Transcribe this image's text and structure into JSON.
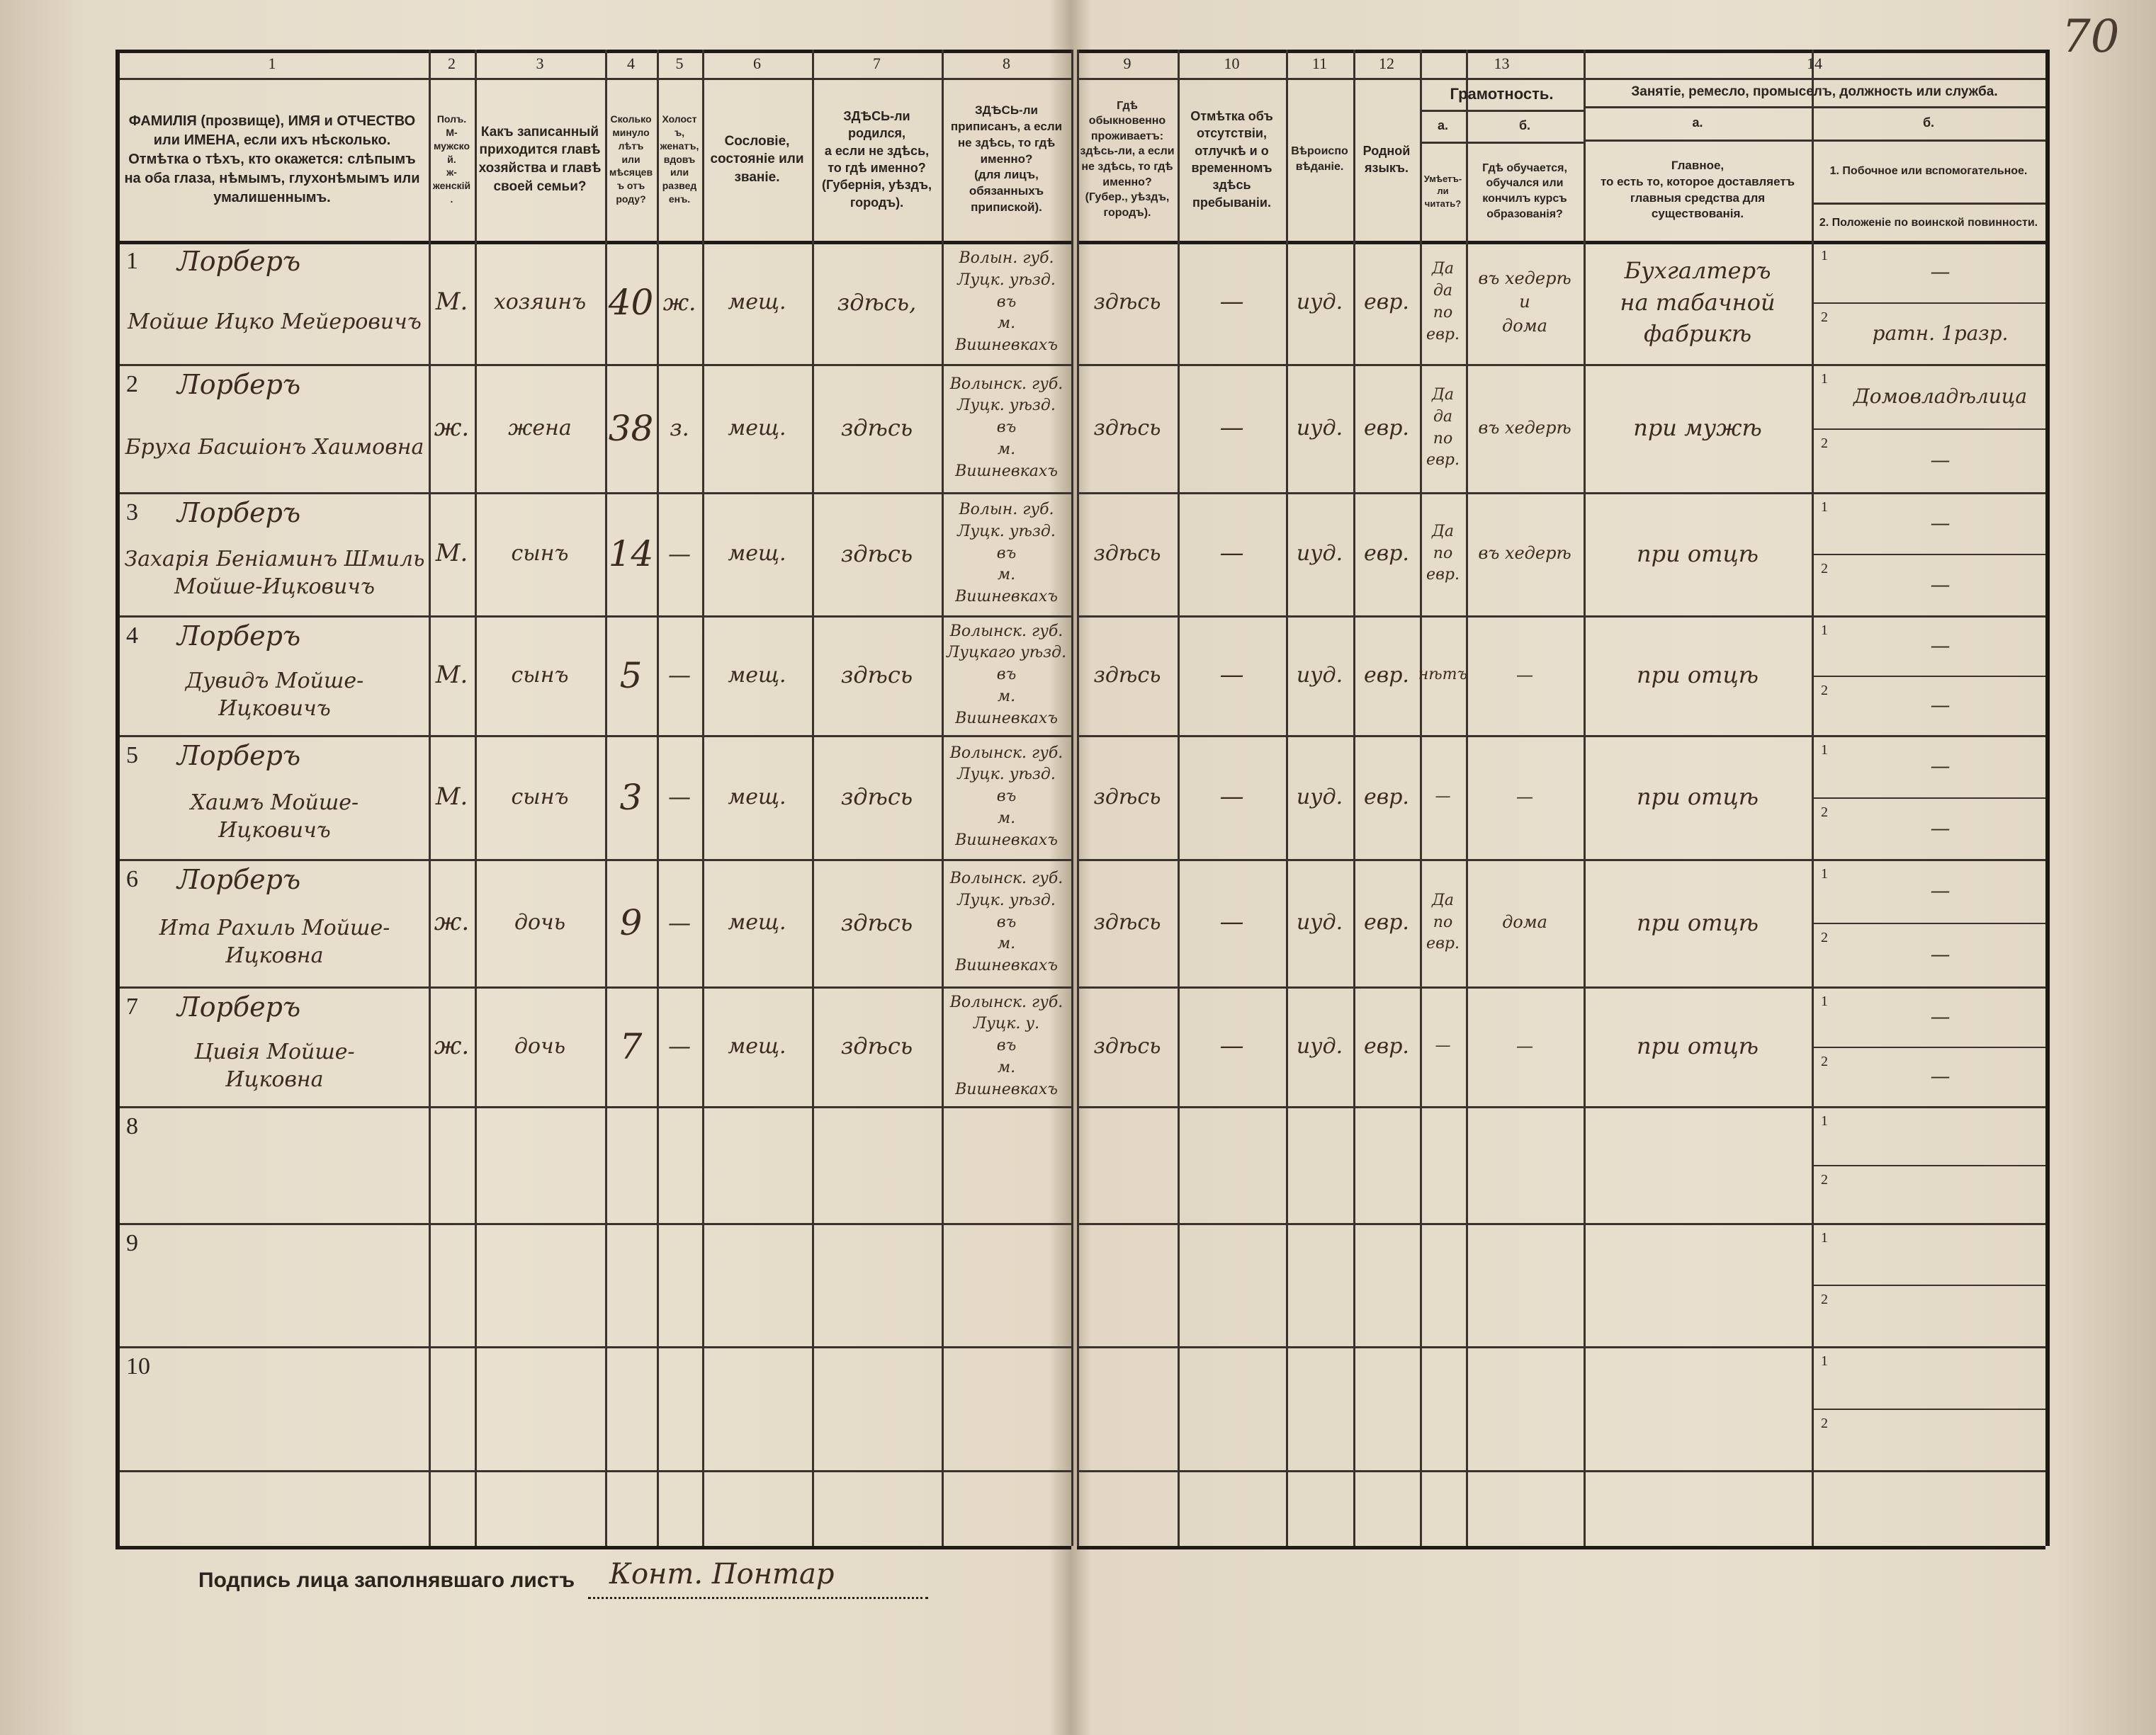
{
  "page_number": "70",
  "header": {
    "col1": {
      "num": "1",
      "label": "ФАМИЛІЯ (прозвище), ИМЯ и ОТЧЕСТВО или ИМЕНА, если ихъ нѣсколько.\nОтмѣтка о тѣхъ, кто окажется: слѣпымъ на оба глаза, нѣмымъ, глухонѣмымъ или умалишеннымъ."
    },
    "col2": {
      "num": "2",
      "label": "Полъ.\nМ-мужской.\nж-женскій."
    },
    "col3": {
      "num": "3",
      "label": "Какъ записанный приходится главѣ хозяйства и главѣ своей семьи?"
    },
    "col4": {
      "num": "4",
      "label": "Сколько минуло лѣтъ или мѣсяцевъ отъ роду?"
    },
    "col5": {
      "num": "5",
      "label": "Холостъ, женатъ, вдовъ или разведенъ."
    },
    "col6": {
      "num": "6",
      "label": "Сословіе, состояніе или званіе."
    },
    "col7": {
      "num": "7",
      "label": "ЗДѢСЬ-ли родился,\na если не здѣсь,\nто гдѣ именно?\n(Губернія, уѣздъ, городъ)."
    },
    "col8": {
      "num": "8",
      "label": "ЗДѢСЬ-ли приписанъ, а если не здѣсь, то гдѣ именно?\n(для лицъ, обязанныхъ припиской)."
    },
    "col9": {
      "num": "9",
      "label": "Гдѣ обыкновенно проживаетъ: здѣсь-ли, а если не здѣсь, то гдѣ именно?\n(Губер., уѣздъ, городъ)."
    },
    "col10": {
      "num": "10",
      "label": "Отмѣтка объ отсутствіи, отлучкѣ и о временномъ здѣсь пребываніи."
    },
    "col11": {
      "num": "11",
      "label": "Вѣроисповѣданіе."
    },
    "col12": {
      "num": "12",
      "label": "Родной языкъ."
    },
    "col13": {
      "num": "13",
      "title": "Грамотность.",
      "a_mark": "а.",
      "b_mark": "б.",
      "a_label": "Умѣетъ-ли читать?",
      "b_label": "Гдѣ обучается, обучался или кончилъ курсъ образованія?"
    },
    "col14": {
      "num": "14",
      "title": "Занятіе, ремесло, промыселъ, должность или служба.",
      "a_mark": "а.",
      "b_mark": "б.",
      "a_label": "Главное,\nто есть то, которое доставляетъ главныя средства для существованія.",
      "b1_label": "1. Побочное или вспомогательное.",
      "b2_label": "2. Положеніе по воинской повинности."
    }
  },
  "rows": [
    {
      "n": "1",
      "surname": "Лорберъ",
      "name": "Мойше Ицко Мейеровичъ",
      "sex": "М.",
      "relation": "хозяинъ",
      "age": "40",
      "marital": "ж.",
      "estate": "мещ.",
      "born": "здѣсь,",
      "registered": "Волын. губ.\nЛуцк. уѣзд.\nвъ\nм. Вишневкахъ",
      "resides": "здѣсь",
      "absence": "—",
      "religion": "иуд.",
      "language": "евр.",
      "literate": "Да\nда\nпо\nевр.",
      "educated": "въ хедерѣ\nи\nдома",
      "occupation": "Бухгалтеръ\nна табачной\nфабрикѣ",
      "occ1": "—",
      "occ2": "ратн. 1разр."
    },
    {
      "n": "2",
      "surname": "Лорберъ",
      "name": "Бруха Басшіонъ Хаимовна",
      "sex": "ж.",
      "relation": "жена",
      "age": "38",
      "marital": "з.",
      "estate": "мещ.",
      "born": "здѣсь",
      "registered": "Волынск. губ.\nЛуцк. уѣзд.\nвъ\nм. Вишневкахъ",
      "resides": "здѣсь",
      "absence": "—",
      "religion": "иуд.",
      "language": "евр.",
      "literate": "Да\nда\nпо\nевр.",
      "educated": "въ хедерѣ",
      "occupation": "при мужѣ",
      "occ1": "Домовладѣлица",
      "occ2": "—"
    },
    {
      "n": "3",
      "surname": "Лорберъ",
      "name": "Захарія Беніаминъ Шмиль\nМойше-Ицковичъ",
      "sex": "М.",
      "relation": "сынъ",
      "age": "14",
      "marital": "—",
      "estate": "мещ.",
      "born": "здѣсь",
      "registered": "Волын. губ.\nЛуцк. уѣзд.\nвъ\nм. Вишневкахъ",
      "resides": "здѣсь",
      "absence": "—",
      "religion": "иуд.",
      "language": "евр.",
      "literate": "Да\nпо\nевр.",
      "educated": "въ хедерѣ",
      "occupation": "при отцѣ",
      "occ1": "—",
      "occ2": "—"
    },
    {
      "n": "4",
      "surname": "Лорберъ",
      "name": "Дувидъ Мойше-\nИцковичъ",
      "sex": "М.",
      "relation": "сынъ",
      "age": "5",
      "marital": "—",
      "estate": "мещ.",
      "born": "здѣсь",
      "registered": "Волынск. губ.\nЛуцкаго уѣзд.\nвъ\nм. Вишневкахъ",
      "resides": "здѣсь",
      "absence": "—",
      "religion": "иуд.",
      "language": "евр.",
      "literate": "нѣтъ",
      "educated": "—",
      "occupation": "при отцѣ",
      "occ1": "—",
      "occ2": "—"
    },
    {
      "n": "5",
      "surname": "Лорберъ",
      "name": "Хаимъ Мойше-\nИцковичъ",
      "sex": "М.",
      "relation": "сынъ",
      "age": "3",
      "marital": "—",
      "estate": "мещ.",
      "born": "здѣсь",
      "registered": "Волынск. губ.\nЛуцк. уѣзд.\nвъ\nм. Вишневкахъ",
      "resides": "здѣсь",
      "absence": "—",
      "religion": "иуд.",
      "language": "евр.",
      "literate": "—",
      "educated": "—",
      "occupation": "при отцѣ",
      "occ1": "—",
      "occ2": "—"
    },
    {
      "n": "6",
      "surname": "Лорберъ",
      "name": "Ита Рахиль Мойше-\nИцковна",
      "sex": "ж.",
      "relation": "дочь",
      "age": "9",
      "marital": "—",
      "estate": "мещ.",
      "born": "здѣсь",
      "registered": "Волынск. губ.\nЛуцк. уѣзд.\nвъ\nм. Вишневкахъ",
      "resides": "здѣсь",
      "absence": "—",
      "religion": "иуд.",
      "language": "евр.",
      "literate": "Да\nпо\nевр.",
      "educated": "дома",
      "occupation": "при отцѣ",
      "occ1": "—",
      "occ2": "—"
    },
    {
      "n": "7",
      "surname": "Лорберъ",
      "name": "Цивія Мойше-\nИцковна",
      "sex": "ж.",
      "relation": "дочь",
      "age": "7",
      "marital": "—",
      "estate": "мещ.",
      "born": "здѣсь",
      "registered": "Волынск. губ.\nЛуцк. у.\nвъ\nм. Вишневкахъ",
      "resides": "здѣсь",
      "absence": "—",
      "religion": "иуд.",
      "language": "евр.",
      "literate": "—",
      "educated": "—",
      "occupation": "при отцѣ",
      "occ1": "—",
      "occ2": "—"
    },
    {
      "n": "8"
    },
    {
      "n": "9"
    },
    {
      "n": "10"
    }
  ],
  "sub_numbers": [
    "1",
    "2"
  ],
  "footer": {
    "signature_label": "Подпись лица заполнявшаго листъ",
    "signature": "Конт. Понтар"
  }
}
